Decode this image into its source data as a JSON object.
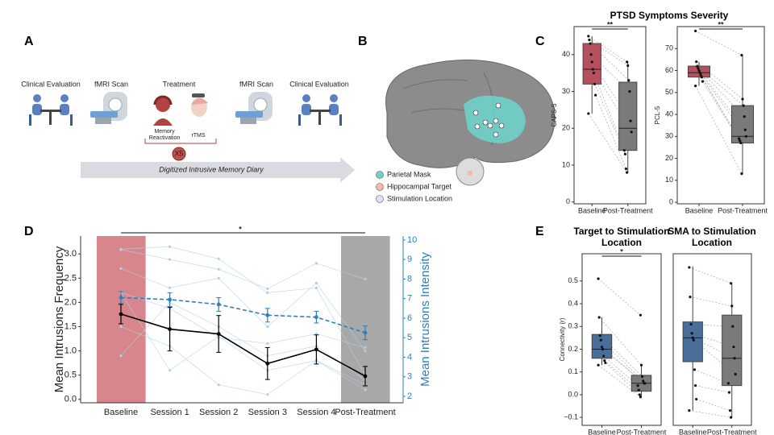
{
  "diagram_a": {
    "label": "A",
    "steps": [
      "Clinical Evaluation",
      "fMRI Scan",
      "Treatment",
      "fMRI Scan",
      "Clinical Evaluation"
    ],
    "treatment_parts": [
      "Memory Reactivation",
      "rTMS"
    ],
    "repeat": "X5",
    "timeline": "Digitized Intrusive Memory Diary"
  },
  "brain_b": {
    "label": "B",
    "legend": [
      {
        "label": "Parietal Mask",
        "color": "#6fd1c9"
      },
      {
        "label": "Hippocampal Target",
        "color": "#f4b9a6"
      },
      {
        "label": "Stimulation Location",
        "color": "#dfe0f2"
      }
    ]
  },
  "panel_labels": {
    "c": "C",
    "d": "D",
    "e": "E"
  },
  "chart_data": [
    {
      "type": "box",
      "title": "PTSD Symptoms Severity",
      "ylabel": "CAPS-5",
      "categories": [
        "Baseline",
        "Post-Treatment"
      ],
      "colors": [
        "#b5505e",
        "#7a7a7a"
      ],
      "min": [
        24,
        8
      ],
      "q1": [
        32,
        14
      ],
      "median": [
        36,
        20
      ],
      "q3": [
        43,
        32.5
      ],
      "max": [
        45,
        38
      ],
      "points": [
        [
          45,
          44,
          43,
          40,
          38,
          36,
          35,
          32,
          29,
          24
        ],
        [
          38,
          37,
          33,
          30,
          22,
          19,
          14,
          13,
          9,
          8
        ]
      ],
      "ylim": [
        -0.5,
        47.6
      ],
      "yticks": [
        0,
        10,
        20,
        30,
        40
      ],
      "significance": "**"
    },
    {
      "type": "box",
      "ylabel": "PCL-5",
      "categories": [
        "Baseline",
        "Post-Treatment"
      ],
      "colors": [
        "#b5505e",
        "#7a7a7a"
      ],
      "min": [
        53,
        13
      ],
      "q1": [
        57,
        27
      ],
      "median": [
        59,
        30
      ],
      "q3": [
        62,
        44
      ],
      "max": [
        64,
        67
      ],
      "points": [
        [
          78,
          64,
          62,
          61,
          60,
          59,
          58,
          57,
          55,
          53
        ],
        [
          67,
          47,
          44,
          39,
          33,
          30,
          29,
          28,
          27,
          13
        ]
      ],
      "ylim": [
        -0.7,
        80
      ],
      "yticks": [
        0,
        10,
        20,
        30,
        40,
        50,
        60,
        70
      ],
      "significance": "**"
    },
    {
      "type": "line",
      "ylabel": "Mean Intrusions Frequency",
      "y2label": "Mean Intrusions Intensity",
      "categories": [
        "Baseline",
        "Session 1",
        "Session 2",
        "Session 3",
        "Session 4",
        "Post-Treatment"
      ],
      "shade_colors": [
        "#d9858c",
        null,
        null,
        null,
        null,
        "#a8a8a8"
      ],
      "ylim": [
        -0.07,
        3.37
      ],
      "yticks": [
        {
          "value": 0,
          "label": "0.0"
        },
        0.5,
        {
          "value": 1,
          "label": "1.0"
        },
        1.5,
        {
          "value": 2,
          "label": "2.0"
        },
        2.5,
        {
          "value": 3,
          "label": "3.0"
        }
      ],
      "y2lim": [
        1.67,
        10.2
      ],
      "y2ticks": [
        2,
        3,
        4,
        5,
        6,
        7,
        8,
        9,
        10
      ],
      "y2color": "#2e7fb8",
      "series": [
        {
          "color": "#b3cfe6",
          "values": [
            3.1,
            3.15,
            2.9,
            2.2,
            2.3,
            0.5
          ]
        },
        {
          "color": "#b3cfe6",
          "values": [
            2.7,
            2.3,
            2.5,
            1.5,
            2.4,
            1.0
          ]
        },
        {
          "color": "#b3cfe6",
          "values": [
            1.5,
            1.1,
            0.3,
            0.1,
            0.8,
            0.2
          ]
        },
        {
          "color": "#b3cfe6",
          "values": [
            2.2,
            0.6,
            1.3,
            0.6,
            0.8,
            0.3
          ]
        },
        {
          "color": "#b3cfe6",
          "values": [
            0.9,
            2.0,
            1.5,
            0.9,
            1.1,
            0.4
          ]
        },
        {
          "color": "#b3cfe6",
          "axis": "y2",
          "values": [
            9.5,
            9.0,
            8.5,
            7.5,
            8.8,
            8.0
          ]
        },
        {
          "color": "#b3cfe6",
          "axis": "y2",
          "values": [
            7.3,
            6.5,
            5.0,
            4.7,
            5.2,
            4.5
          ]
        },
        {
          "color": "#000000",
          "values": [
            1.76,
            1.45,
            1.35,
            0.74,
            1.03,
            0.48
          ],
          "errors": [
            0.2,
            0.45,
            0.38,
            0.33,
            0.3,
            0.2
          ]
        },
        {
          "color": "#2e7fb8",
          "axis": "y2",
          "dashed": true,
          "values": [
            7.05,
            6.95,
            6.7,
            6.15,
            6.05,
            5.25
          ],
          "errors": [
            0.3,
            0.35,
            0.35,
            0.35,
            0.3,
            0.35
          ]
        }
      ],
      "significance": "*"
    },
    {
      "type": "box",
      "title": "Target to Stimulation Location",
      "ylabel": "Connectivity (r)",
      "categories": [
        "Baseline",
        "Post-Treatment"
      ],
      "colors": [
        "#4a6e9a",
        "#7a7a7a"
      ],
      "min": [
        0.13,
        -0.01
      ],
      "q1": [
        0.16,
        0.015
      ],
      "median": [
        0.2,
        0.05
      ],
      "q3": [
        0.265,
        0.085
      ],
      "max": [
        0.34,
        0.13
      ],
      "points": [
        [
          0.51,
          0.34,
          0.26,
          0.24,
          0.21,
          0.2,
          0.17,
          0.15,
          0.14,
          0.13
        ],
        [
          0.35,
          0.13,
          0.08,
          0.06,
          0.05,
          0.05,
          0.04,
          0.02,
          0.0,
          -0.01
        ]
      ],
      "ylim": [
        -0.135,
        0.62
      ],
      "yticks": [
        {
          "value": -0.1,
          "label": "−0.1"
        },
        {
          "value": 0,
          "label": "0.0"
        },
        0.1,
        0.2,
        0.3,
        0.4,
        0.5
      ],
      "significance": "*"
    },
    {
      "type": "box",
      "title": "SMA to Stimulation Location",
      "categories": [
        "Baseline",
        "Post-Treatment"
      ],
      "colors": [
        "#4a6e9a",
        "#7a7a7a"
      ],
      "min": [
        -0.07,
        -0.1
      ],
      "q1": [
        0.145,
        0.04
      ],
      "median": [
        0.25,
        0.16
      ],
      "q3": [
        0.32,
        0.35
      ],
      "max": [
        0.565,
        0.49
      ],
      "points": [
        [
          0.56,
          0.43,
          0.31,
          0.27,
          0.25,
          0.24,
          0.11,
          0.04,
          -0.02,
          -0.07
        ],
        [
          0.49,
          0.39,
          0.3,
          0.21,
          0.16,
          0.09,
          0.05,
          0.01,
          -0.07,
          -0.1
        ]
      ],
      "ylim": [
        -0.135,
        0.62
      ]
    }
  ]
}
